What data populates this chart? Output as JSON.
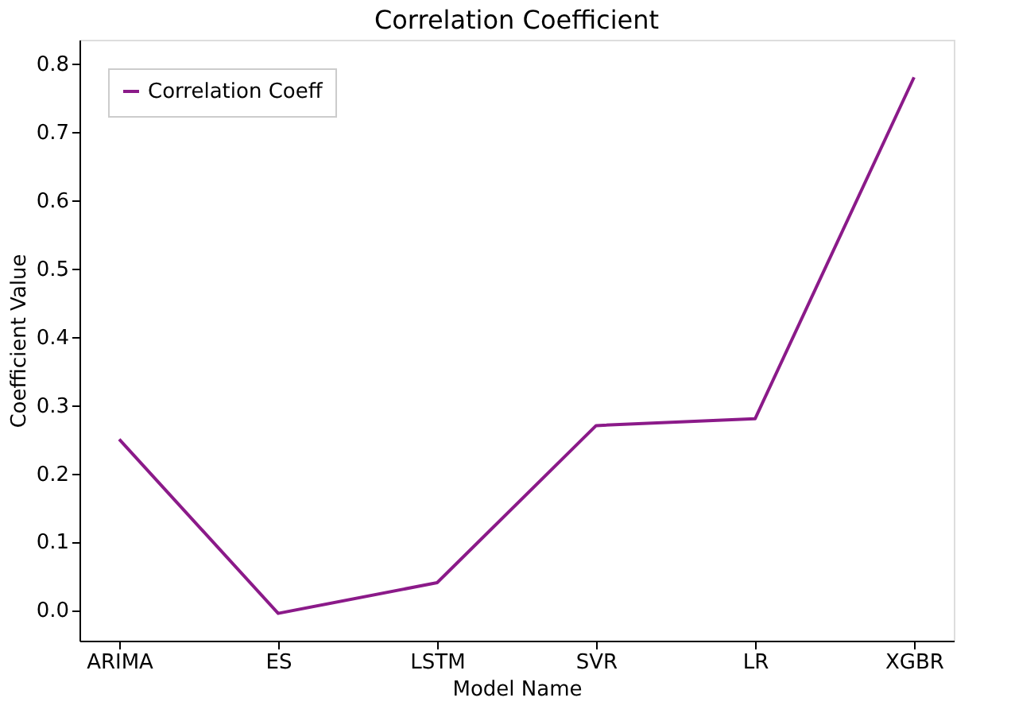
{
  "chart_data": {
    "type": "line",
    "title": "Correlation Coefficient",
    "xlabel": "Model Name",
    "ylabel": "Coefficient Value",
    "categories": [
      "ARIMA",
      "ES",
      "LSTM",
      "SVR",
      "LR",
      "XGBR"
    ],
    "series": [
      {
        "name": "Correlation Coeff",
        "color": "#8b1a89",
        "values": [
          0.25,
          -0.005,
          0.04,
          0.27,
          0.28,
          0.78
        ]
      }
    ],
    "ylim": [
      -0.045,
      0.835
    ],
    "yticks": [
      {
        "value": 0,
        "label": "0.0"
      },
      0.1,
      0.2,
      0.3,
      0.4,
      0.5,
      0.6,
      0.7,
      0.8
    ],
    "grid": false,
    "legend": "top left",
    "marker": "none",
    "line_style": "solid"
  }
}
